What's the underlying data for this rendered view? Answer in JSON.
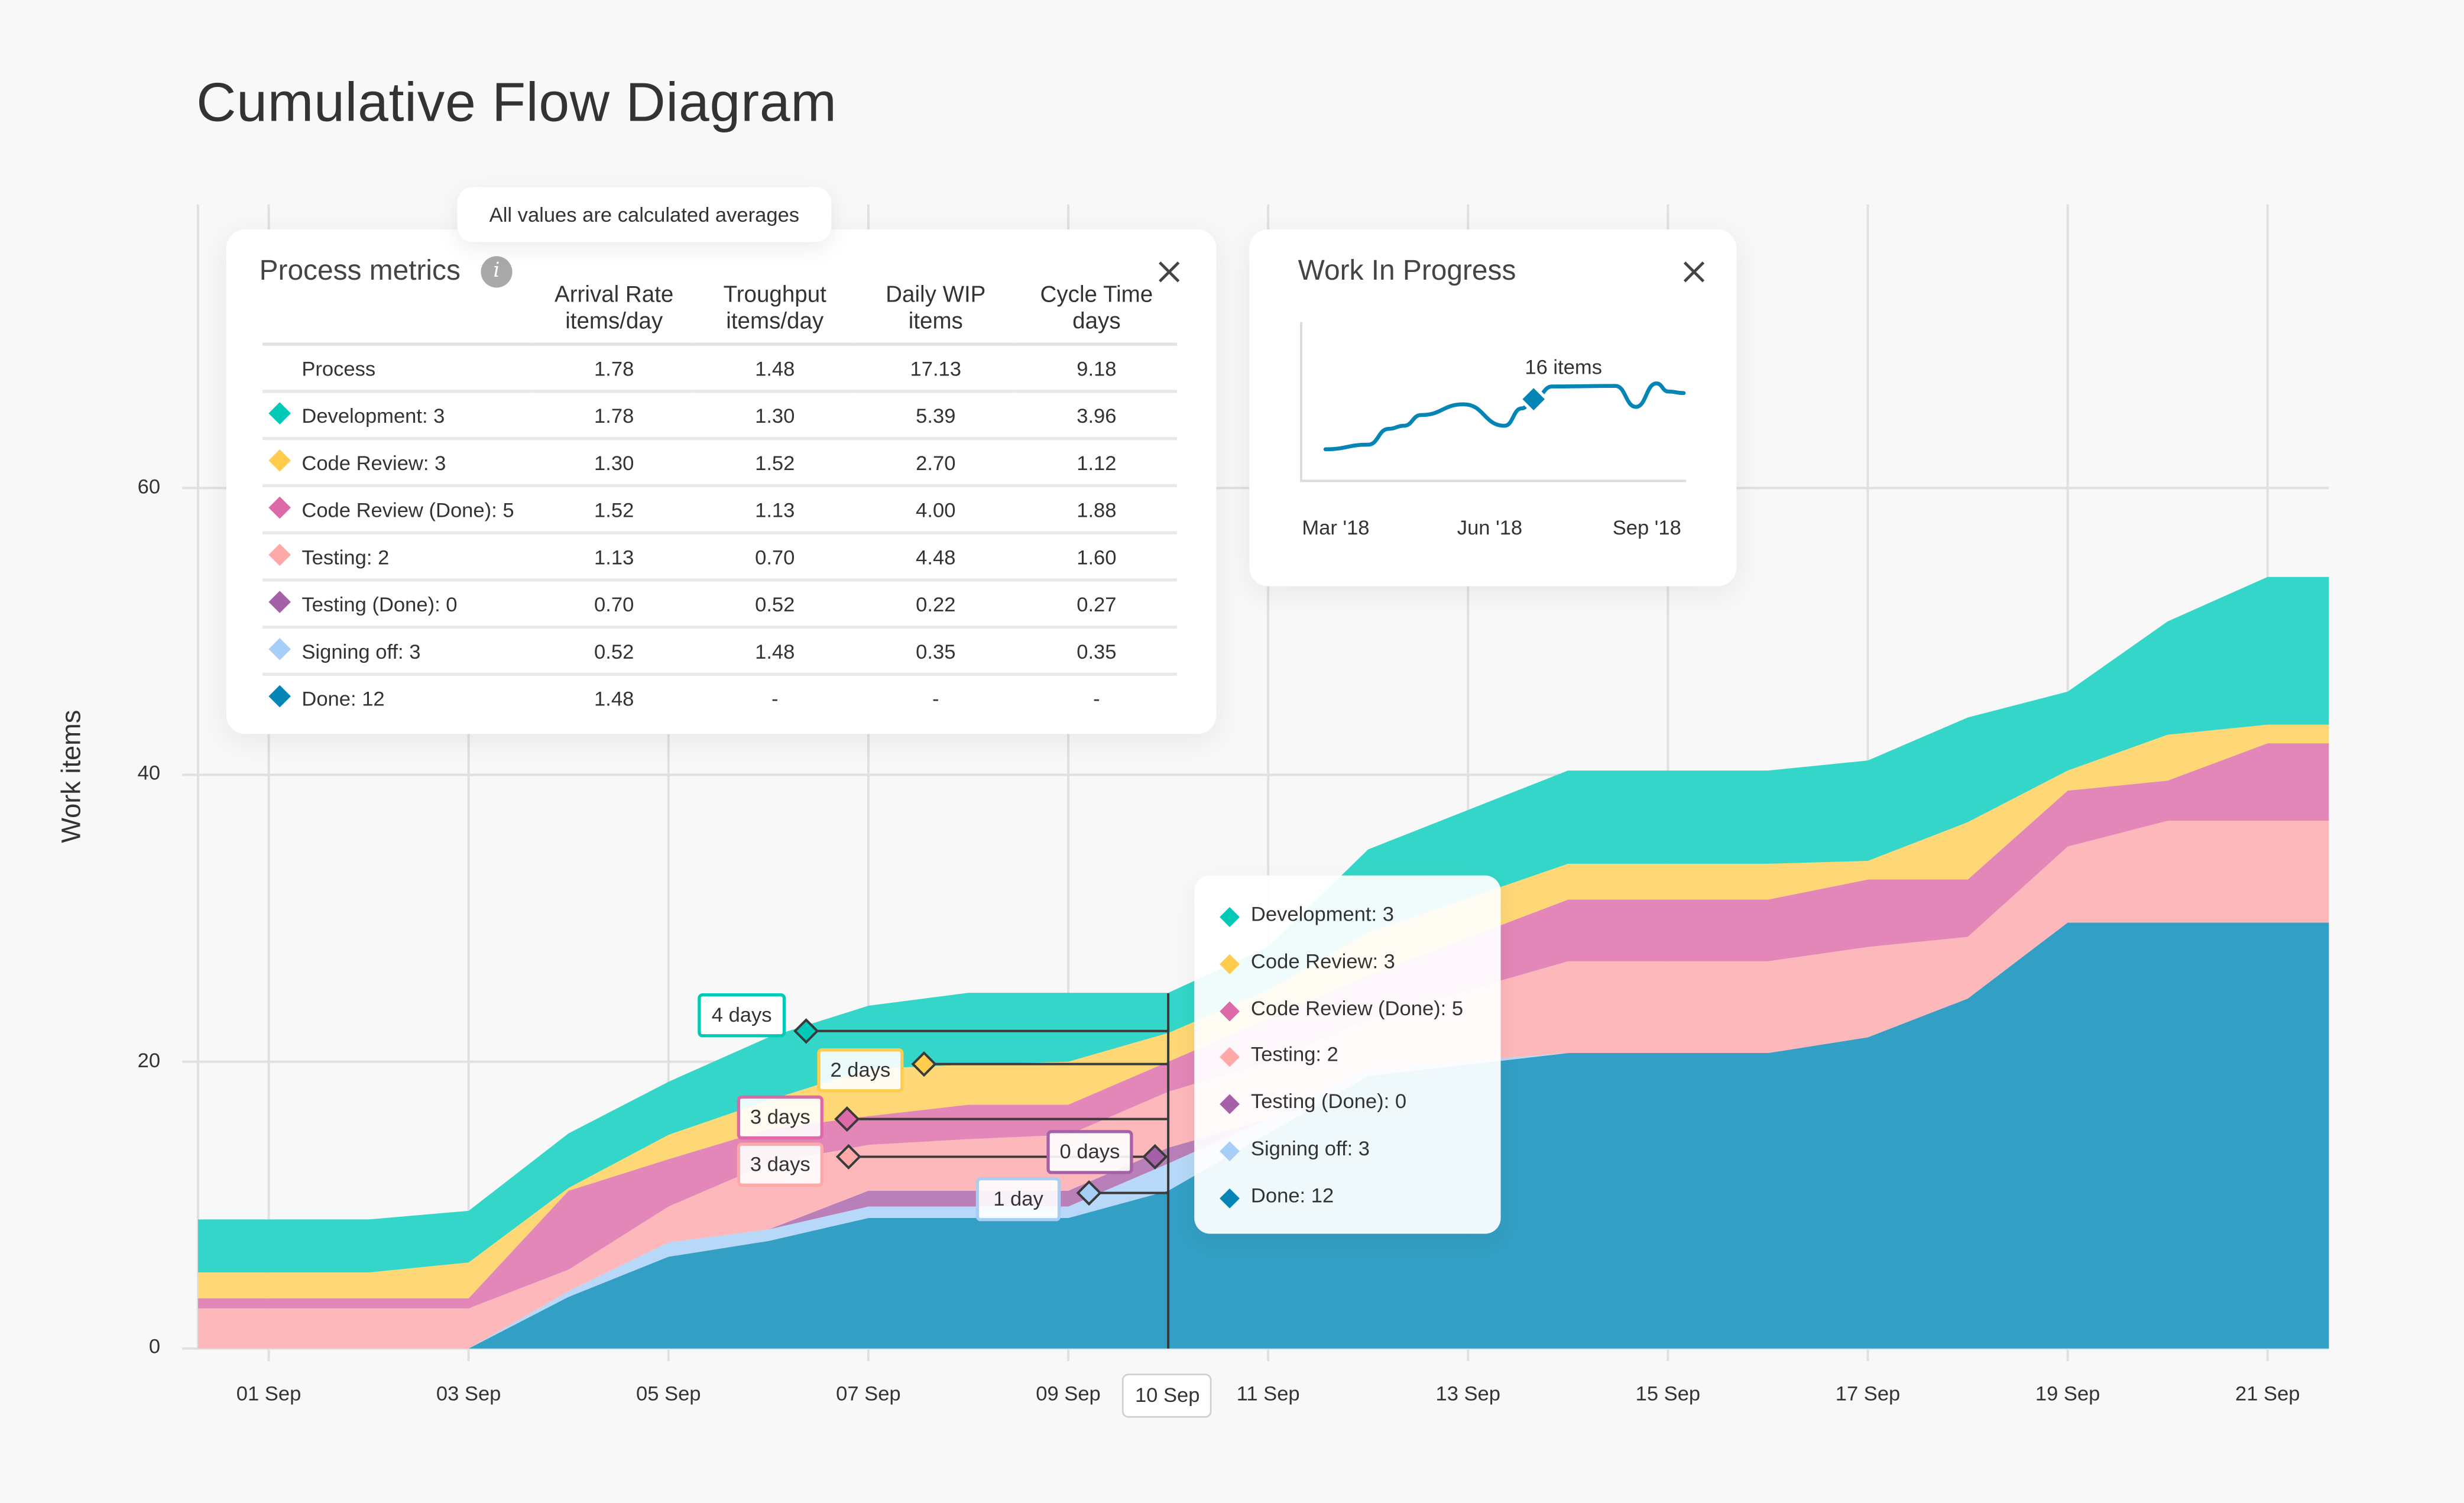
{
  "title": "Cumulative Flow Diagram",
  "metrics_panel": {
    "title": "Process metrics",
    "info_icon": "info-icon",
    "close_icon": "close-icon",
    "tooltip": "All values are calculated averages",
    "headers": [
      {
        "line1": "",
        "line2": ""
      },
      {
        "line1": "Arrival Rate",
        "line2": "items/day"
      },
      {
        "line1": "Troughput",
        "line2": "items/day"
      },
      {
        "line1": "Daily WIP",
        "line2": "items"
      },
      {
        "line1": "Cycle Time",
        "line2": "days"
      }
    ],
    "rows": [
      {
        "label": "Process",
        "color": "",
        "arrival": "1.78",
        "throughput": "1.48",
        "wip": "17.13",
        "cycle": "9.18"
      },
      {
        "label": "Development: 3",
        "color": "#00c9b7",
        "arrival": "1.78",
        "throughput": "1.30",
        "wip": "5.39",
        "cycle": "3.96"
      },
      {
        "label": "Code Review: 3",
        "color": "#ffcc4d",
        "arrival": "1.30",
        "throughput": "1.52",
        "wip": "2.70",
        "cycle": "1.12"
      },
      {
        "label": "Code Review (Done): 5",
        "color": "#de69a9",
        "arrival": "1.52",
        "throughput": "1.13",
        "wip": "4.00",
        "cycle": "1.88"
      },
      {
        "label": "Testing: 2",
        "color": "#ffa8a8",
        "arrival": "1.13",
        "throughput": "0.70",
        "wip": "4.48",
        "cycle": "1.60"
      },
      {
        "label": "Testing (Done): 0",
        "color": "#a660a8",
        "arrival": "0.70",
        "throughput": "0.52",
        "wip": "0.22",
        "cycle": "0.27"
      },
      {
        "label": "Signing off: 3",
        "color": "#a6cef7",
        "arrival": "0.52",
        "throughput": "1.48",
        "wip": "0.35",
        "cycle": "0.35"
      },
      {
        "label": "Done: 12",
        "color": "#0585b5",
        "arrival": "1.48",
        "throughput": "-",
        "wip": "-",
        "cycle": "-"
      }
    ]
  },
  "wip_panel": {
    "title": "Work In Progress",
    "close_icon": "close-icon",
    "highlight_label": "16 items",
    "x_ticks": [
      "Mar '18",
      "Jun '18",
      "Sep '18"
    ],
    "line_color": "#0585b5",
    "points": [
      {
        "x": "2018-02-23",
        "y": 6.2
      },
      {
        "x": "2018-03-20",
        "y": 7.1
      },
      {
        "x": "2018-04-01",
        "y": 10.2
      },
      {
        "x": "2018-04-10",
        "y": 10.8
      },
      {
        "x": "2018-04-20",
        "y": 12.9
      },
      {
        "x": "2018-05-15",
        "y": 15
      },
      {
        "x": "2018-06-08",
        "y": 10.8
      },
      {
        "x": "2018-06-18",
        "y": 14.2
      },
      {
        "x": "2018-06-25",
        "y": 16
      },
      {
        "x": "2018-07-06",
        "y": 18.5
      },
      {
        "x": "2018-08-12",
        "y": 18.6
      },
      {
        "x": "2018-08-24",
        "y": 14.5
      },
      {
        "x": "2018-09-05",
        "y": 19.1
      },
      {
        "x": "2018-09-12",
        "y": 17.5
      },
      {
        "x": "2018-09-21",
        "y": 17.2
      }
    ],
    "highlight_x": "2018-06-25"
  },
  "chart_data": {
    "type": "area",
    "stacked": true,
    "ylabel": "Work items",
    "ylim": [
      0,
      60
    ],
    "y_ticks": [
      "0",
      "20",
      "40",
      "60"
    ],
    "x_ticks": [
      "01 Sep",
      "03 Sep",
      "05 Sep",
      "07 Sep",
      "09 Sep",
      "10 Sep",
      "11 Sep",
      "13 Sep",
      "15 Sep",
      "17 Sep",
      "19 Sep",
      "21 Sep"
    ],
    "highlighted_x": "10 Sep",
    "grid": true,
    "x": [
      "31 Aug",
      "02 Sep",
      "03 Sep",
      "04 Sep",
      "05 Sep",
      "06 Sep",
      "07 Sep",
      "08 Sep",
      "09 Sep",
      "10 Sep",
      "11 Sep",
      "12 Sep",
      "14 Sep",
      "15 Sep",
      "16 Sep",
      "17 Sep",
      "18 Sep",
      "19 Sep",
      "20 Sep",
      "21 Sep",
      "22 Sep"
    ],
    "series": [
      {
        "name": "Done: 12",
        "color": "#339fc4",
        "marker_color": "#0585b5",
        "values": [
          0,
          0,
          0,
          3.6,
          6.4,
          7.5,
          9.1,
          9.1,
          9.1,
          11,
          15,
          19,
          20.6,
          20.6,
          20.6,
          21.7,
          24.4,
          29.7,
          29.7,
          29.7,
          29.7
        ]
      },
      {
        "name": "Signing off: 3",
        "color": "#b7d8f8",
        "marker_color": "#a6cef7",
        "values": [
          0,
          0,
          0,
          0.4,
          1.0,
          0.8,
          0.8,
          0.8,
          0.8,
          1.9,
          1,
          0.5,
          0,
          0,
          0,
          0,
          0,
          0,
          0,
          0,
          0
        ]
      },
      {
        "name": "Testing (Done): 0",
        "color": "#b97fb8",
        "marker_color": "#a660a8",
        "values": [
          0,
          0,
          0,
          0,
          0,
          0,
          1.1,
          1.1,
          1.1,
          1.1,
          0,
          0,
          0,
          0,
          0,
          0,
          0,
          0,
          0,
          0,
          0
        ]
      },
      {
        "name": "Testing: 2",
        "color": "#fdb8bb",
        "marker_color": "#ffa8a8",
        "values": [
          2.8,
          2.8,
          2.8,
          1.5,
          2.5,
          4.6,
          3.2,
          3.6,
          3.9,
          3.9,
          4,
          3.5,
          6.4,
          6.4,
          6.4,
          6.3,
          4.3,
          5.3,
          7.1,
          7.1,
          7.1
        ]
      },
      {
        "name": "Code Review (Done): 5",
        "color": "#e287b7",
        "marker_color": "#de69a9",
        "values": [
          0.7,
          0.7,
          0.7,
          5.5,
          3.3,
          2.4,
          2.0,
          2.4,
          2.1,
          2.1,
          3,
          3,
          4.3,
          4.3,
          4.3,
          4.7,
          4.0,
          3.9,
          2.8,
          5.4,
          5.4
        ]
      },
      {
        "name": "Code Review: 3",
        "color": "#fed776",
        "marker_color": "#ffcc4d",
        "values": [
          1.8,
          1.8,
          2.5,
          0.2,
          1.7,
          2.0,
          3.3,
          2.8,
          3.0,
          2.0,
          2,
          3,
          2.5,
          2.5,
          2.5,
          1.3,
          4.0,
          1.4,
          3.2,
          1.3,
          1.3
        ]
      },
      {
        "name": "Development: 3",
        "color": "#33d6c8",
        "marker_color": "#00c9b7",
        "values": [
          3.7,
          3.7,
          3.6,
          3.8,
          3.7,
          4.4,
          4.4,
          5.0,
          4.8,
          2.8,
          3,
          5.8,
          6.5,
          6.5,
          6.5,
          7.0,
          7.3,
          5.5,
          7.9,
          10.3,
          10.3
        ]
      }
    ],
    "legend": [
      "Development: 3",
      "Code Review: 3",
      "Code Review (Done): 5",
      "Testing: 2",
      "Testing (Done): 0",
      "Signing off: 3",
      "Done: 12"
    ],
    "annotations": [
      {
        "label": "4 days",
        "stage": "Development",
        "color": "#00c9b7"
      },
      {
        "label": "2 days",
        "stage": "Code Review",
        "color": "#ffcc4d"
      },
      {
        "label": "3 days",
        "stage": "Code Review (Done)",
        "color": "#de69a9"
      },
      {
        "label": "3 days",
        "stage": "Testing",
        "color": "#ffa8a8"
      },
      {
        "label": "0 days",
        "stage": "Testing (Done)",
        "color": "#a660a8"
      },
      {
        "label": "1 day",
        "stage": "Signing off",
        "color": "#a6cef7"
      }
    ]
  }
}
